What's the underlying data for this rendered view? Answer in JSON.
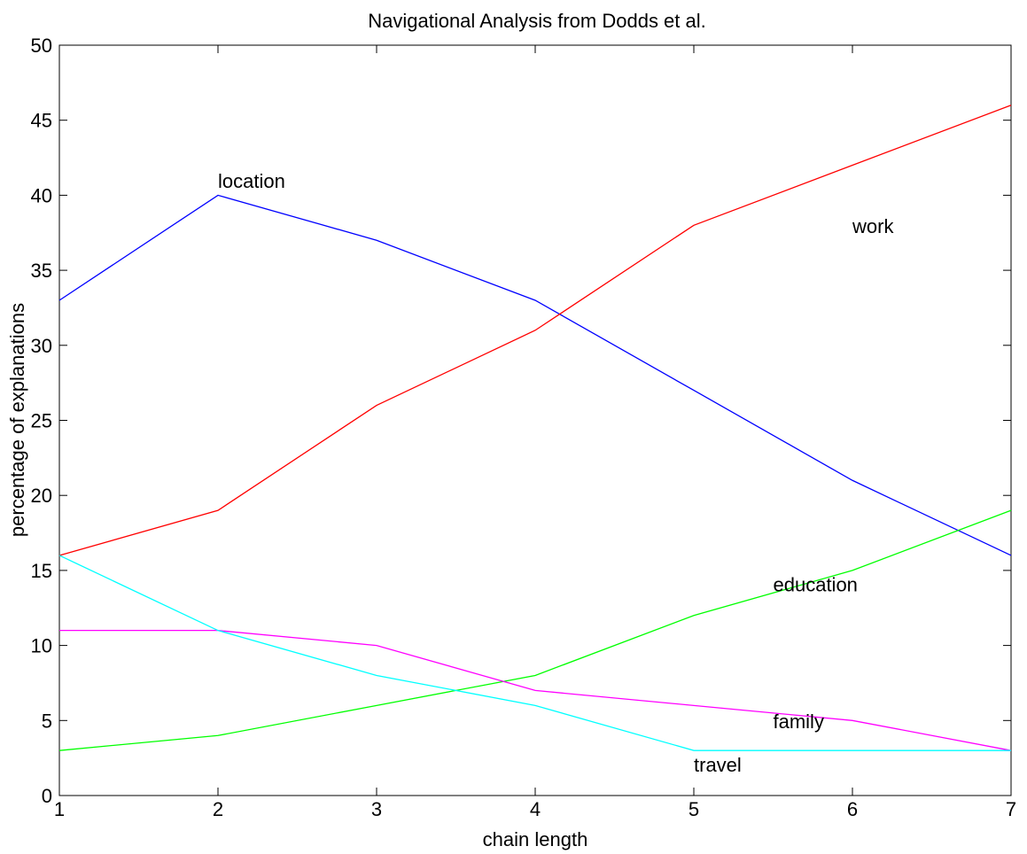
{
  "chart_data": {
    "type": "line",
    "title": "Navigational Analysis from Dodds et al.",
    "xlabel": "chain length",
    "ylabel": "percentage of explanations",
    "xlim": [
      1,
      7
    ],
    "ylim": [
      0,
      50
    ],
    "x": [
      1,
      2,
      3,
      4,
      5,
      6,
      7
    ],
    "xticks": [
      "1",
      "2",
      "3",
      "4",
      "5",
      "6",
      "7"
    ],
    "yticks": [
      "0",
      "5",
      "10",
      "15",
      "20",
      "25",
      "30",
      "35",
      "40",
      "45",
      "50"
    ],
    "grid": false,
    "legend": "none",
    "series": [
      {
        "name": "location",
        "color": "#0000ff",
        "values": [
          33,
          40,
          37,
          33,
          27,
          21,
          16
        ]
      },
      {
        "name": "work",
        "color": "#ff0000",
        "values": [
          16,
          19,
          26,
          31,
          38,
          42,
          46
        ]
      },
      {
        "name": "education",
        "color": "#00ff00",
        "values": [
          3,
          4,
          6,
          8,
          12,
          15,
          19
        ]
      },
      {
        "name": "family",
        "color": "#ff00ff",
        "values": [
          11,
          11,
          10,
          7,
          6,
          5,
          3
        ]
      },
      {
        "name": "travel",
        "color": "#00ffff",
        "values": [
          16,
          11,
          8,
          6,
          3,
          3,
          3
        ]
      }
    ],
    "annotations": [
      {
        "text": "location",
        "x": 2.0,
        "y": 40.5
      },
      {
        "text": "work",
        "x": 6.0,
        "y": 37.5
      },
      {
        "text": "education",
        "x": 5.5,
        "y": 13.6
      },
      {
        "text": "family",
        "x": 5.5,
        "y": 4.5
      },
      {
        "text": "travel",
        "x": 5.0,
        "y": 1.6
      }
    ]
  }
}
